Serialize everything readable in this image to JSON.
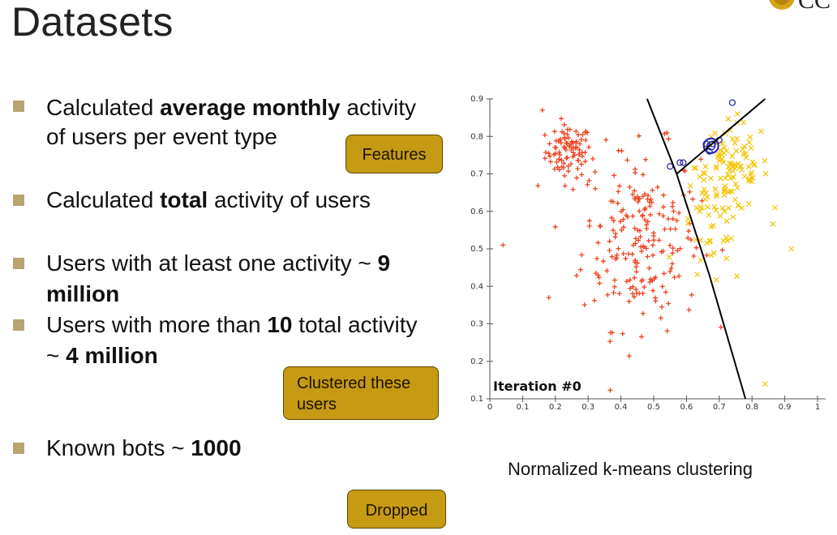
{
  "title": "Datasets",
  "bullets": [
    {
      "lines": [
        [
          {
            "t": "Calculated "
          },
          {
            "t": "average monthly",
            "b": true
          },
          {
            "t": " activity"
          }
        ],
        [
          {
            "t": "of users per event type"
          }
        ]
      ]
    },
    {
      "lines": [
        [
          {
            "t": "Calculated "
          },
          {
            "t": "total",
            "b": true
          },
          {
            "t": " activity of users"
          }
        ]
      ]
    },
    {
      "lines": [
        [
          {
            "t": "Users with at least one activity ~ "
          },
          {
            "t": "9",
            "b": true
          }
        ],
        [
          {
            "t": "million",
            "b": true
          }
        ]
      ]
    },
    {
      "lines": [
        [
          {
            "t": "Users with more than "
          },
          {
            "t": "10",
            "b": true
          },
          {
            "t": " total activity"
          }
        ],
        [
          {
            "t": "~ "
          },
          {
            "t": "4 million",
            "b": true
          }
        ]
      ]
    },
    {
      "lines": [
        [
          {
            "t": "Known bots ~ "
          },
          {
            "t": "1000",
            "b": true
          }
        ]
      ]
    }
  ],
  "callouts": {
    "features": "Features",
    "clustered": [
      "Clustered these",
      "users"
    ],
    "dropped": "Dropped"
  },
  "caption": "Normalized k-means clustering",
  "chart_data": {
    "type": "scatter",
    "annotation": "Iteration #0",
    "x_ticks": [
      "0",
      "0.1",
      "0.2",
      "0.3",
      "0.4",
      "0.5",
      "0.6",
      "0.7",
      "0.8",
      "0.9",
      "1"
    ],
    "y_ticks": [
      "0.1",
      "0.2",
      "0.3",
      "0.4",
      "0.5",
      "0.6",
      "0.7",
      "0.8",
      "0.9"
    ],
    "xlim": [
      0,
      1
    ],
    "ylim": [
      0.1,
      0.9
    ],
    "colors": {
      "cluster_red": "#ee4422",
      "cluster_yellow": "#f4c400",
      "centroid": "#2a2aa8",
      "boundary": "#000000"
    },
    "clusters": [
      {
        "marker": "+",
        "color": "#ee4422",
        "groups": [
          {
            "cx": 0.24,
            "cy": 0.76,
            "sx": 0.035,
            "sy": 0.035,
            "n": 90
          },
          {
            "cx": 0.46,
            "cy": 0.53,
            "sx": 0.09,
            "sy": 0.12,
            "n": 210
          }
        ],
        "extra": [
          [
            0.04,
            0.51
          ],
          [
            0.16,
            0.87
          ],
          [
            0.18,
            0.37
          ]
        ]
      },
      {
        "marker": "x",
        "color": "#f4c400",
        "groups": [
          {
            "cx": 0.74,
            "cy": 0.72,
            "sx": 0.055,
            "sy": 0.06,
            "n": 90
          },
          {
            "cx": 0.68,
            "cy": 0.55,
            "sx": 0.05,
            "sy": 0.08,
            "n": 50
          }
        ],
        "extra": [
          [
            0.92,
            0.5
          ],
          [
            0.84,
            0.14
          ],
          [
            0.87,
            0.61
          ]
        ]
      },
      {
        "marker": "o",
        "color": "#2a2aa8",
        "groups": [],
        "extra": [
          [
            0.74,
            0.89
          ],
          [
            0.58,
            0.73
          ],
          [
            0.59,
            0.73
          ],
          [
            0.66,
            0.78
          ],
          [
            0.68,
            0.78
          ],
          [
            0.7,
            0.79
          ],
          [
            0.67,
            0.76
          ],
          [
            0.55,
            0.72
          ]
        ]
      }
    ],
    "centroid": [
      0.675,
      0.775
    ],
    "boundaries": [
      [
        [
          0.48,
          0.9
        ],
        [
          0.57,
          0.7
        ],
        [
          0.67,
          0.43
        ],
        [
          0.78,
          0.1
        ]
      ],
      [
        [
          0.57,
          0.7
        ],
        [
          0.84,
          0.9
        ]
      ]
    ]
  }
}
